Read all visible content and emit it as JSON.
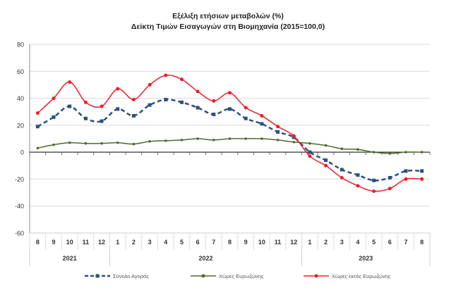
{
  "chart_data": {
    "type": "line",
    "title": "Εξέλιξη ετήσιων μεταβολών (%)",
    "subtitle": "Δείκτη Τιμών Εισαγωγών στη Βιομηχανία (2015=100,0)",
    "categories": [
      "8",
      "9",
      "10",
      "11",
      "12",
      "1",
      "2",
      "3",
      "4",
      "5",
      "6",
      "7",
      "8",
      "9",
      "10",
      "11",
      "12",
      "1",
      "2",
      "3",
      "4",
      "5",
      "6",
      "7",
      "8"
    ],
    "year_groups": [
      {
        "label": "2021",
        "count": 5
      },
      {
        "label": "2022",
        "count": 12
      },
      {
        "label": "2023",
        "count": 8
      }
    ],
    "ylim": [
      -60,
      80
    ],
    "yticks": [
      -60,
      -40,
      -20,
      0,
      20,
      40,
      60,
      80
    ],
    "grid": true,
    "legend": "bottom",
    "series": [
      {
        "name": "Σύνολο Αγοράς",
        "color": "#2e4f7f",
        "style": "dashed",
        "marker": "square",
        "values": [
          19,
          26,
          34,
          25,
          23,
          32,
          27,
          35,
          39,
          37,
          33,
          28,
          32,
          25,
          21,
          15,
          11,
          0,
          -6,
          -13,
          -17,
          -21,
          -19,
          -14,
          -14
        ]
      },
      {
        "name": "Χώρες Ευρωζώνης",
        "color": "#4f6b2a",
        "style": "solid",
        "marker": "dot",
        "values": [
          3,
          5.5,
          7,
          6.5,
          6.5,
          7,
          6,
          8,
          8.5,
          9,
          10,
          9,
          10,
          10,
          10,
          9,
          7.5,
          6.5,
          5,
          2.5,
          2,
          0,
          -1,
          0,
          0
        ]
      },
      {
        "name": "Χώρες εκτός Ευρωζώνης",
        "color": "#e8202a",
        "style": "solid",
        "marker": "circle",
        "values": [
          29,
          40,
          52,
          37,
          34,
          47,
          39,
          50,
          57,
          54,
          45,
          38,
          44,
          33,
          27,
          19,
          12,
          -3,
          -10,
          -19,
          -25,
          -29,
          -27,
          -20,
          -20
        ]
      }
    ]
  }
}
